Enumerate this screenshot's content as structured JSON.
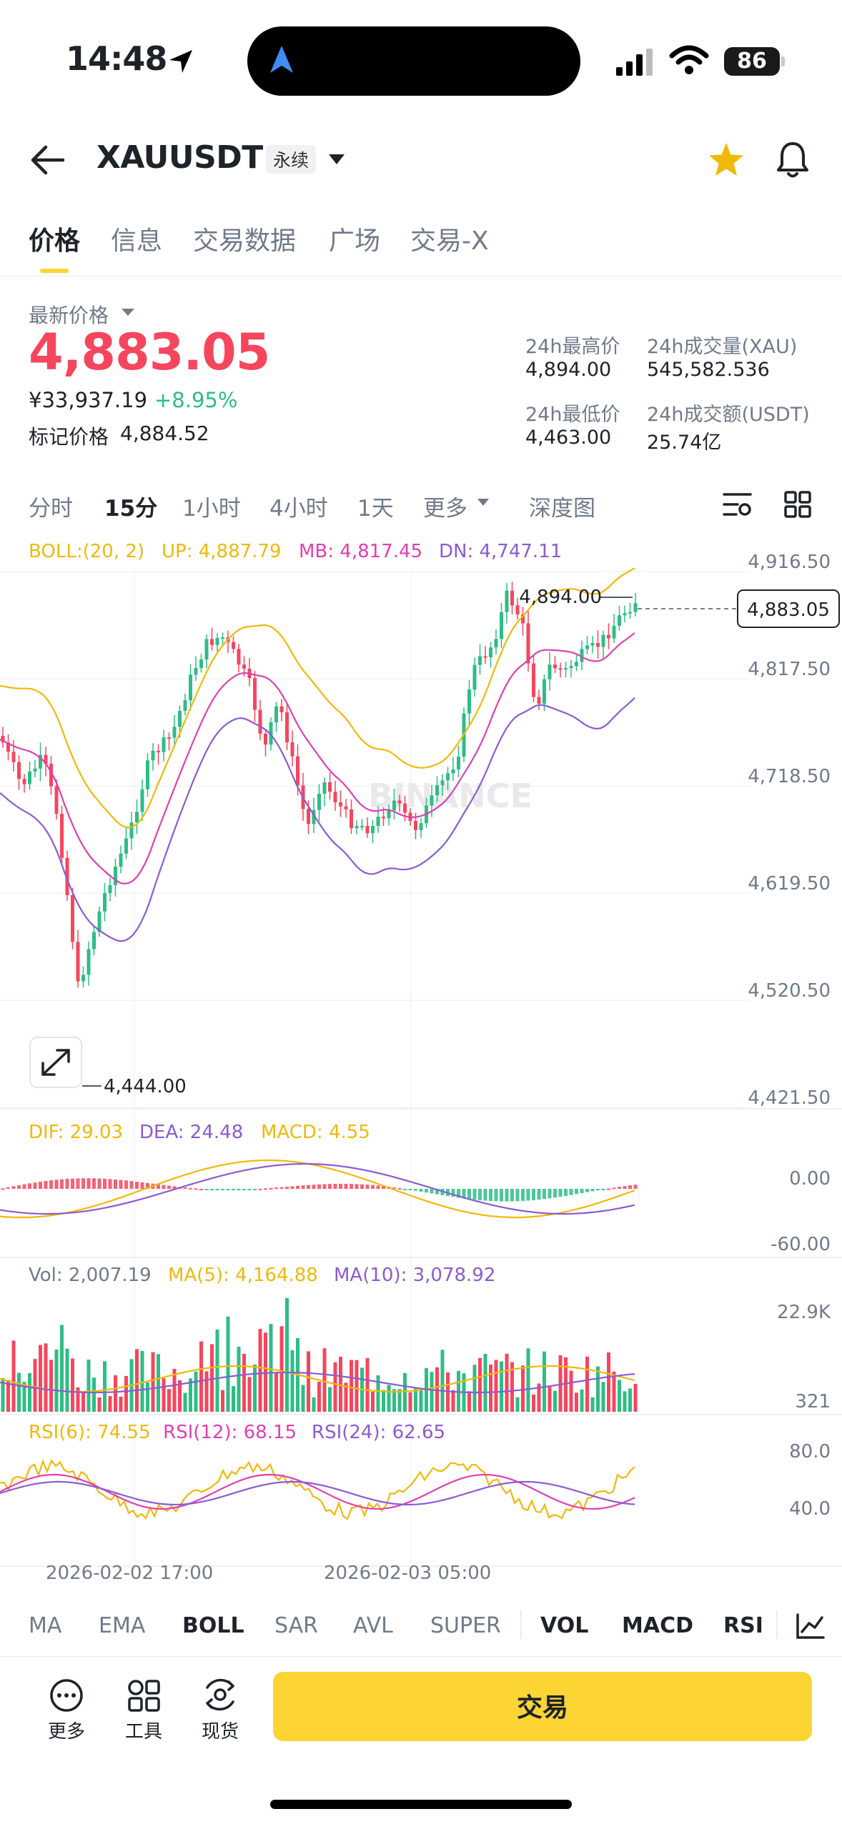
{
  "status_bar": {
    "time": "14:48",
    "battery": "86"
  },
  "header": {
    "symbol": "XAUUSDT",
    "badge": "永续"
  },
  "tabs": [
    {
      "label": "价格"
    },
    {
      "label": "信息"
    },
    {
      "label": "交易数据"
    },
    {
      "label": "广场"
    },
    {
      "label": "交易-X"
    }
  ],
  "price": {
    "last_label": "最新价格",
    "last": "4,883.05",
    "cny": "¥33,937.19",
    "change": "+8.95%",
    "mark_label": "标记价格",
    "mark": "4,884.52"
  },
  "stats": {
    "high_label": "24h最高价",
    "high": "4,894.00",
    "vol_label": "24h成交量(XAU)",
    "vol": "545,582.536",
    "low_label": "24h最低价",
    "low": "4,463.00",
    "amount_label": "24h成交额(USDT)",
    "amount": "25.74亿"
  },
  "timeframes": [
    {
      "label": "分时"
    },
    {
      "label": "15分"
    },
    {
      "label": "1小时"
    },
    {
      "label": "4小时"
    },
    {
      "label": "1天"
    },
    {
      "label": "更多"
    },
    {
      "label": "深度图"
    }
  ],
  "chart_data": {
    "type": "candlestick",
    "indicators": {
      "boll": {
        "label": "BOLL:(20, 2)",
        "up": "UP: 4,887.79",
        "mb": "MB: 4,817.45",
        "dn": "DN: 4,747.11"
      },
      "macd": {
        "dif": "DIF: 29.03",
        "dea": "DEA: 24.48",
        "macd": "MACD: 4.55"
      },
      "vol": {
        "vol": "Vol: 2,007.19",
        "ma5": "MA(5): 4,164.88",
        "ma10": "MA(10): 3,078.92"
      },
      "rsi": {
        "rsi6": "RSI(6): 74.55",
        "rsi12": "RSI(12): 68.15",
        "rsi24": "RSI(24): 62.65"
      }
    },
    "price_axis": [
      "4,916.50",
      "4,817.50",
      "4,718.50",
      "4,619.50",
      "4,520.50",
      "4,421.50"
    ],
    "price_range": [
      4421.5,
      4916.5
    ],
    "current_price": "4,883.05",
    "high_marker": "4,894.00",
    "low_marker": "4,444.00",
    "macd_axis": [
      "0.00",
      "-60.00"
    ],
    "vol_axis": [
      "22.9K",
      "321"
    ],
    "rsi_axis": [
      "80.0",
      "40.0"
    ],
    "x_labels": [
      "2026-02-02 17:00",
      "2026-02-03 05:00"
    ],
    "watermark": "BINANCE",
    "colors": {
      "up": "#2ebd85",
      "down": "#f6465d",
      "boll_up": "#f0b90b",
      "boll_mb": "#e040b0",
      "boll_dn": "#8c5bd1"
    }
  },
  "indicator_bar": [
    {
      "label": "MA"
    },
    {
      "label": "EMA"
    },
    {
      "label": "BOLL"
    },
    {
      "label": "SAR"
    },
    {
      "label": "AVL"
    },
    {
      "label": "SUPER"
    },
    {
      "label": "VOL"
    },
    {
      "label": "MACD"
    },
    {
      "label": "RSI"
    }
  ],
  "bottom": {
    "more": "更多",
    "tools": "工具",
    "spot": "现货",
    "trade": "交易"
  }
}
